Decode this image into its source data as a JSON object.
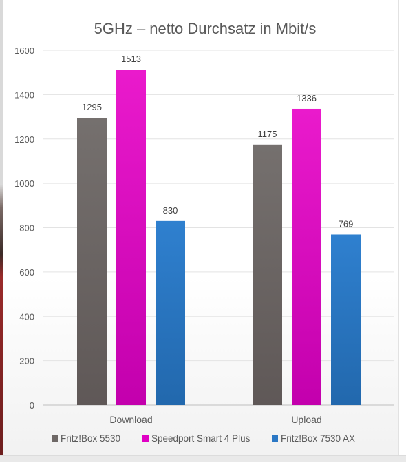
{
  "chart_data": {
    "type": "bar",
    "title": "5GHz – netto Durchsatz in Mbit/s",
    "categories": [
      "Download",
      "Upload"
    ],
    "series": [
      {
        "name": "Fritz!Box 5530",
        "values": [
          1295,
          1175
        ],
        "color": "#6e6866"
      },
      {
        "name": "Speedport Smart 4 Plus",
        "values": [
          1513,
          1336
        ],
        "color": "#e000c4"
      },
      {
        "name": "Fritz!Box 7530 AX",
        "values": [
          830,
          769
        ],
        "color": "#2b78c5"
      }
    ],
    "ylim": [
      0,
      1600
    ],
    "yticks": [
      0,
      200,
      400,
      600,
      800,
      1000,
      1200,
      1400,
      1600
    ],
    "grid": true,
    "legend_position": "bottom",
    "data_labels": true
  }
}
